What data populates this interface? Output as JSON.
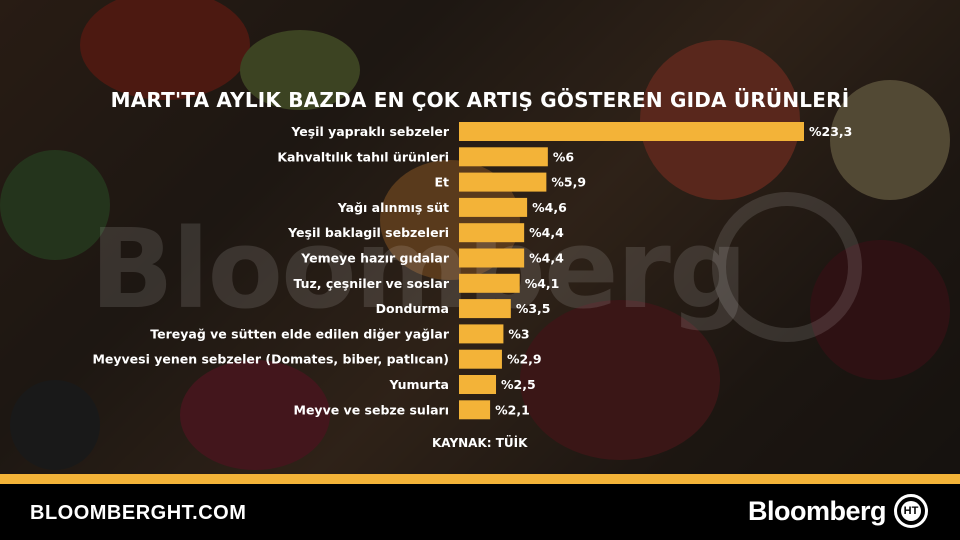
{
  "chart_data": {
    "type": "bar",
    "orientation": "horizontal",
    "title": "MART'TA AYLIK BAZDA EN ÇOK ARTIŞ GÖSTEREN GIDA ÜRÜNLERİ",
    "categories": [
      "Yeşil yapraklı sebzeler",
      "Kahvaltılık tahıl ürünleri",
      "Et",
      "Yağı alınmış süt",
      "Yeşil baklagil sebzeleri",
      "Yemeye hazır gıdalar",
      "Tuz, çeşniler ve soslar",
      "Dondurma",
      "Tereyağ ve sütten elde edilen diğer yağlar",
      "Meyvesi yenen sebzeler (Domates, biber, patlıcan)",
      "Yumurta",
      "Meyve ve sebze suları"
    ],
    "values": [
      23.3,
      6,
      5.9,
      4.6,
      4.4,
      4.4,
      4.1,
      3.5,
      3,
      2.9,
      2.5,
      2.1
    ],
    "value_labels": [
      "%23,3",
      "%6",
      "%5,9",
      "%4,6",
      "%4,4",
      "%4,4",
      "%4,1",
      "%3,5",
      "%3",
      "%2,9",
      "%2,5",
      "%2,1"
    ],
    "bar_color": "#f3b338",
    "grid": false,
    "legend": "none"
  },
  "source": "KAYNAK: TÜİK",
  "watermark": "Bloomberg",
  "footer": {
    "site": "BLOOMBERGHT.COM",
    "brand": "Bloomberg",
    "logo_text": "HT"
  },
  "colors": {
    "accent": "#f3b338",
    "footer_bg": "#000000",
    "text": "#ffffff"
  }
}
